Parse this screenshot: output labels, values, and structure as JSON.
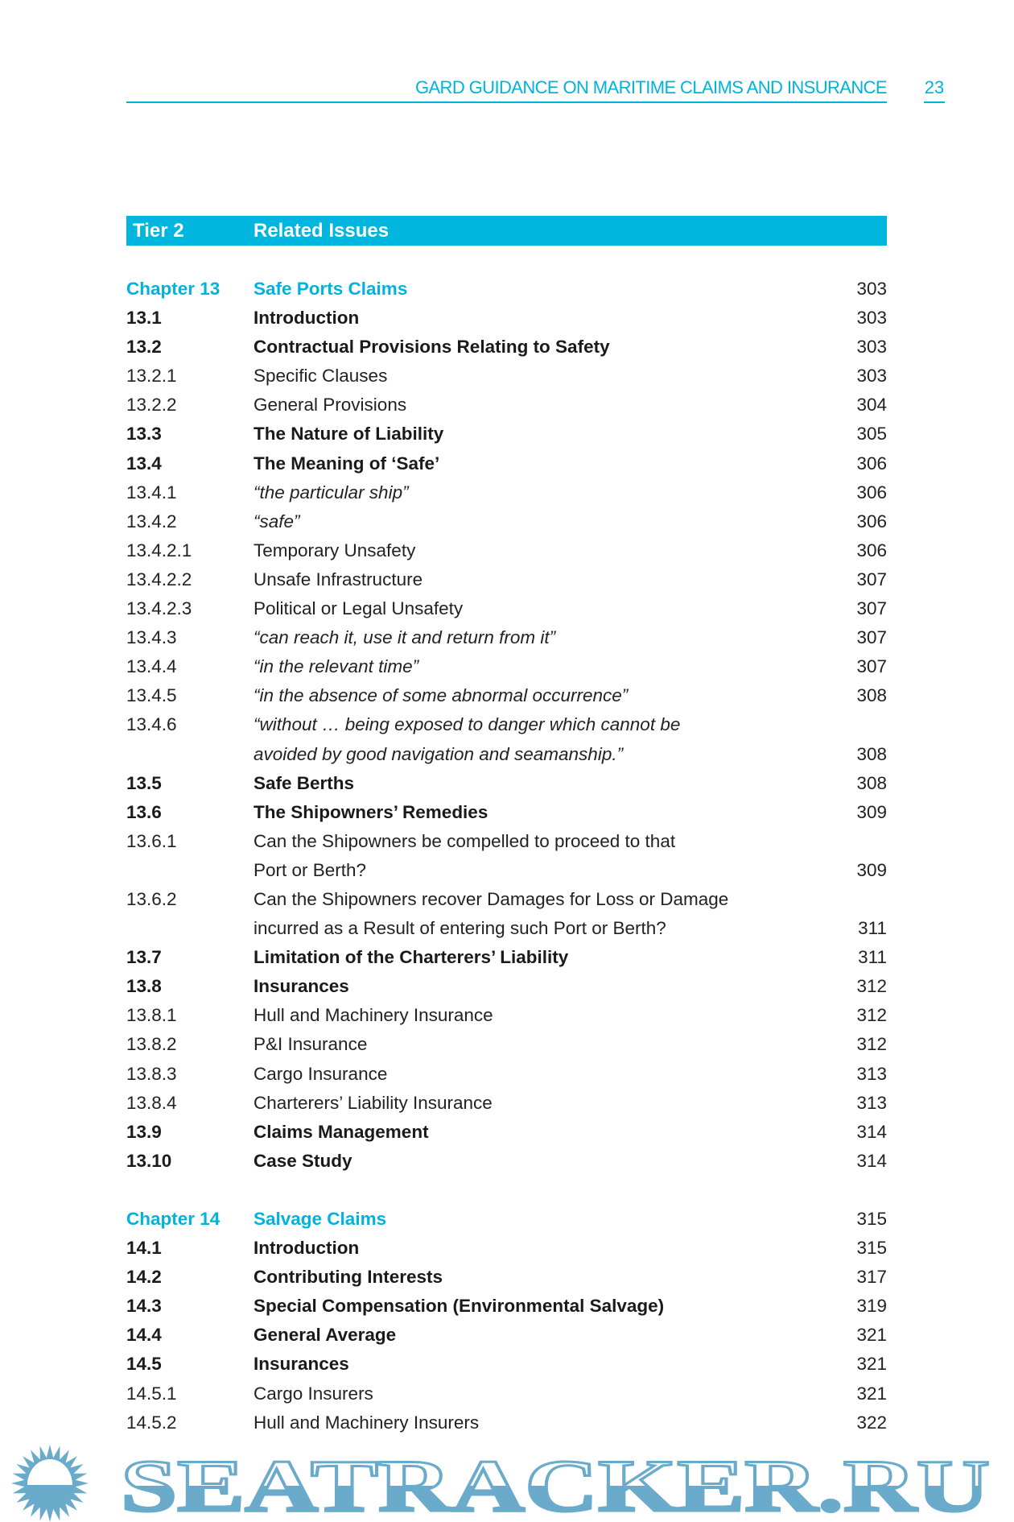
{
  "header": {
    "title": "GARD GUIDANCE ON MARITIME CLAIMS AND INSURANCE",
    "page_number": "23"
  },
  "tier": {
    "label": "Tier 2",
    "title": "Related Issues"
  },
  "toc": [
    {
      "num": "Chapter 13",
      "title": [
        "Safe Ports Claims"
      ],
      "page": "303",
      "style": "chap"
    },
    {
      "num": "13.1",
      "title": [
        "Introduction"
      ],
      "page": "303",
      "style": "bold"
    },
    {
      "num": "13.2",
      "title": [
        "Contractual Provisions Relating to Safety"
      ],
      "page": "303",
      "style": "bold"
    },
    {
      "num": "13.2.1",
      "title": [
        "Specific Clauses"
      ],
      "page": "303",
      "style": "normal"
    },
    {
      "num": "13.2.2",
      "title": [
        "General Provisions"
      ],
      "page": "304",
      "style": "normal"
    },
    {
      "num": "13.3",
      "title": [
        "The Nature of Liability"
      ],
      "page": "305",
      "style": "bold"
    },
    {
      "num": "13.4",
      "title": [
        "The Meaning of ‘Safe’"
      ],
      "page": "306",
      "style": "bold"
    },
    {
      "num": "13.4.1",
      "title": [
        "“the particular ship”"
      ],
      "page": "306",
      "style": "italic"
    },
    {
      "num": "13.4.2",
      "title": [
        "“safe”"
      ],
      "page": "306",
      "style": "italic"
    },
    {
      "num": "13.4.2.1",
      "title": [
        "Temporary Unsafety"
      ],
      "page": "306",
      "style": "normal"
    },
    {
      "num": "13.4.2.2",
      "title": [
        "Unsafe Infrastructure"
      ],
      "page": "307",
      "style": "normal"
    },
    {
      "num": "13.4.2.3",
      "title": [
        "Political or Legal Unsafety"
      ],
      "page": "307",
      "style": "normal"
    },
    {
      "num": "13.4.3",
      "title": [
        "“can reach it, use it and return from it”"
      ],
      "page": "307",
      "style": "italic"
    },
    {
      "num": "13.4.4",
      "title": [
        "“in the relevant time”"
      ],
      "page": "307",
      "style": "italic"
    },
    {
      "num": "13.4.5",
      "title": [
        "“in the absence of some abnormal occurrence”"
      ],
      "page": "308",
      "style": "italic"
    },
    {
      "num": "13.4.6",
      "title": [
        "“without … being exposed to danger which cannot be",
        "avoided by good navigation and seamanship.”"
      ],
      "page": "308",
      "style": "italic"
    },
    {
      "num": "13.5",
      "title": [
        "Safe Berths"
      ],
      "page": "308",
      "style": "bold"
    },
    {
      "num": "13.6",
      "title": [
        "The Shipowners’ Remedies"
      ],
      "page": "309",
      "style": "bold"
    },
    {
      "num": "13.6.1",
      "title": [
        "Can the Shipowners be compelled to proceed to that",
        "Port or Berth?"
      ],
      "page": "309",
      "style": "normal"
    },
    {
      "num": "13.6.2",
      "title": [
        "Can the Shipowners recover Damages for Loss or Damage",
        "incurred as a Result of entering such Port or Berth?"
      ],
      "page": "311",
      "style": "normal"
    },
    {
      "num": "13.7",
      "title": [
        "Limitation of the Charterers’ Liability"
      ],
      "page": "311",
      "style": "bold"
    },
    {
      "num": "13.8",
      "title": [
        "Insurances"
      ],
      "page": "312",
      "style": "bold"
    },
    {
      "num": "13.8.1",
      "title": [
        "Hull and Machinery Insurance"
      ],
      "page": "312",
      "style": "normal"
    },
    {
      "num": "13.8.2",
      "title": [
        "P&I Insurance"
      ],
      "page": "312",
      "style": "normal"
    },
    {
      "num": "13.8.3",
      "title": [
        "Cargo Insurance"
      ],
      "page": "313",
      "style": "normal"
    },
    {
      "num": "13.8.4",
      "title": [
        "Charterers’ Liability Insurance"
      ],
      "page": "313",
      "style": "normal"
    },
    {
      "num": "13.9",
      "title": [
        "Claims Management"
      ],
      "page": "314",
      "style": "bold"
    },
    {
      "num": "13.10",
      "title": [
        "Case Study"
      ],
      "page": "314",
      "style": "bold"
    },
    {
      "num": "",
      "title": [
        ""
      ],
      "page": "",
      "style": "spacer"
    },
    {
      "num": "Chapter 14",
      "title": [
        "Salvage Claims"
      ],
      "page": "315",
      "style": "chap"
    },
    {
      "num": "14.1",
      "title": [
        "Introduction"
      ],
      "page": "315",
      "style": "bold"
    },
    {
      "num": "14.2",
      "title": [
        "Contributing Interests"
      ],
      "page": "317",
      "style": "bold"
    },
    {
      "num": "14.3",
      "title": [
        "Special Compensation (Environmental Salvage)"
      ],
      "page": "319",
      "style": "bold"
    },
    {
      "num": "14.4",
      "title": [
        "General Average"
      ],
      "page": "321",
      "style": "bold"
    },
    {
      "num": "14.5",
      "title": [
        "Insurances"
      ],
      "page": "321",
      "style": "bold"
    },
    {
      "num": "14.5.1",
      "title": [
        "Cargo Insurers"
      ],
      "page": "321",
      "style": "normal"
    },
    {
      "num": "14.5.2",
      "title": [
        "Hull and Machinery Insurers"
      ],
      "page": "322",
      "style": "normal"
    }
  ],
  "watermark": {
    "text": "SEATRACKER.RU",
    "color": "#6aaacb"
  },
  "colors": {
    "accent": "#00b3dc"
  }
}
